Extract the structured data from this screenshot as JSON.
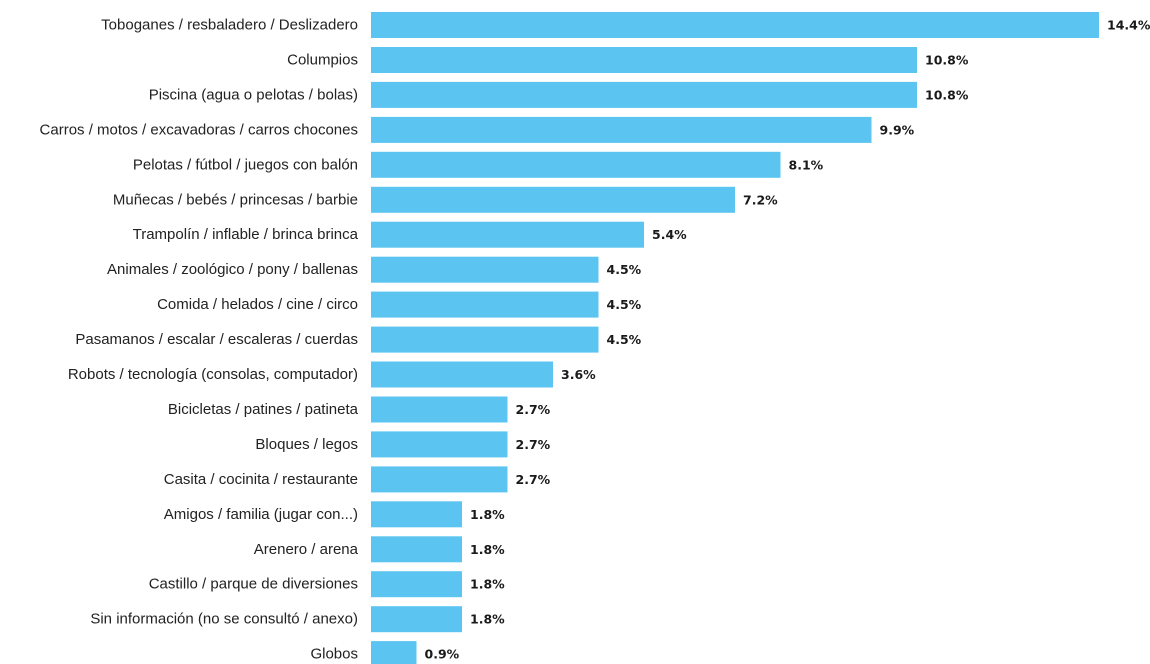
{
  "chart_data": {
    "type": "bar",
    "orientation": "horizontal",
    "categories": [
      "Toboganes / resbaladero / Deslizadero",
      "Columpios",
      "Piscina (agua o pelotas / bolas)",
      "Carros / motos / excavadoras / carros chocones",
      "Pelotas / fútbol / juegos con balón",
      "Muñecas / bebés / princesas / barbie",
      "Trampolín / inflable / brinca brinca",
      "Animales / zoológico / pony / ballenas",
      "Comida / helados / cine / circo",
      "Pasamanos / escalar / escaleras / cuerdas",
      "Robots / tecnología (consolas, computador)",
      "Bicicletas / patines / patineta",
      "Bloques / legos",
      "Casita / cocinita / restaurante",
      "Amigos / familia (jugar con...)",
      "Arenero / arena",
      "Castillo / parque de diversiones",
      "Sin información (no se consultó / anexo)",
      "Globos"
    ],
    "values": [
      14.4,
      10.8,
      10.8,
      9.9,
      8.1,
      7.2,
      5.4,
      4.5,
      4.5,
      4.5,
      3.6,
      2.7,
      2.7,
      2.7,
      1.8,
      1.8,
      1.8,
      1.8,
      0.9
    ],
    "value_labels": [
      "14.4%",
      "10.8%",
      "10.8%",
      "9.9%",
      "8.1%",
      "7.2%",
      "5.4%",
      "4.5%",
      "4.5%",
      "4.5%",
      "3.6%",
      "2.7%",
      "2.7%",
      "2.7%",
      "1.8%",
      "1.8%",
      "1.8%",
      "1.8%",
      "0.9%"
    ],
    "unit": "%",
    "title": "",
    "xlabel": "",
    "ylabel": "",
    "xlim": [
      0,
      14.4
    ],
    "grid": false,
    "legend": "none",
    "bar_color": "#5bc4f0"
  }
}
